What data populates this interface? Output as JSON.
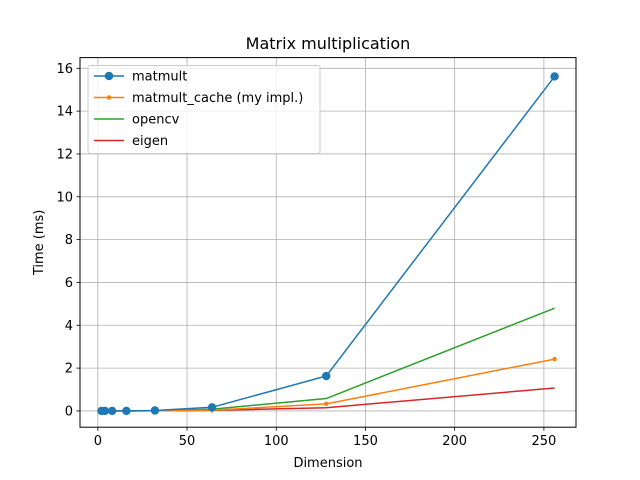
{
  "chart_data": {
    "type": "line",
    "title": "Matrix multiplication",
    "xlabel": "Dimension",
    "ylabel": "Time (ms)",
    "xlim": [
      -10,
      268
    ],
    "ylim": [
      -0.76,
      16.5
    ],
    "xticks": [
      0,
      50,
      100,
      150,
      200,
      250
    ],
    "yticks": [
      0,
      2,
      4,
      6,
      8,
      10,
      12,
      14,
      16
    ],
    "grid": true,
    "legend_position": "upper-left",
    "series": [
      {
        "name": "matmult",
        "color": "#1f77b4",
        "marker": "large-circle",
        "x": [
          2,
          4,
          8,
          16,
          32,
          64,
          128,
          256
        ],
        "y": [
          0.0,
          0.0,
          0.0,
          0.0,
          0.02,
          0.17,
          1.63,
          15.62
        ]
      },
      {
        "name": "matmult_cache (my impl.)",
        "color": "#ff7f0e",
        "marker": "small-circle",
        "x": [
          2,
          4,
          8,
          16,
          32,
          64,
          128,
          256
        ],
        "y": [
          0.0,
          0.0,
          0.0,
          0.0,
          0.01,
          0.03,
          0.33,
          2.42
        ]
      },
      {
        "name": "opencv",
        "color": "#2ca02c",
        "marker": "none",
        "x": [
          2,
          4,
          8,
          16,
          32,
          64,
          128,
          256
        ],
        "y": [
          0.0,
          0.0,
          0.0,
          0.0,
          0.01,
          0.08,
          0.58,
          4.8
        ]
      },
      {
        "name": "eigen",
        "color": "#d62728",
        "marker": "none",
        "x": [
          2,
          4,
          8,
          16,
          32,
          64,
          128,
          256
        ],
        "y": [
          0.0,
          0.0,
          0.0,
          0.0,
          0.01,
          0.03,
          0.15,
          1.07
        ]
      }
    ]
  }
}
